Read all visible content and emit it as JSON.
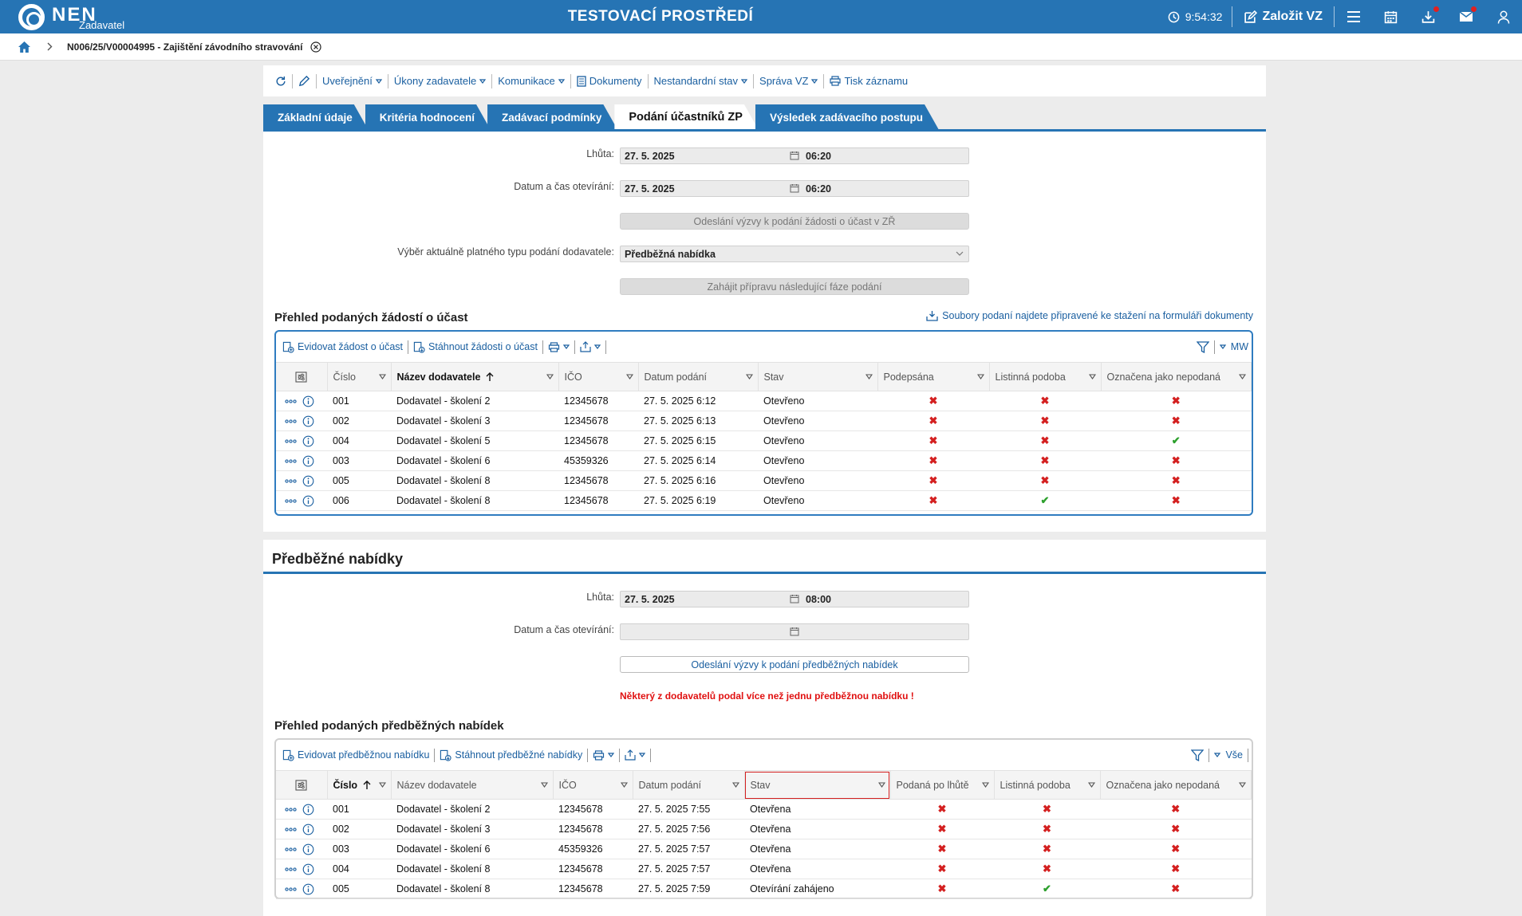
{
  "topbar": {
    "logo_text": "NEN",
    "logo_sub": "Zadavatel",
    "env_title": "TESTOVACÍ PROSTŘEDÍ",
    "time": "9:54:32",
    "create_label": "Založit VZ"
  },
  "breadcrumb": {
    "text": "N006/25/V00004995 - Zajištění závodního stravování"
  },
  "toolbar": {
    "items": [
      "Uveřejnění",
      "Úkony zadavatele",
      "Komunikace",
      "Dokumenty",
      "Nestandardní stav",
      "Správa VZ",
      "Tisk záznamu"
    ]
  },
  "tabs": [
    "Základní údaje",
    "Kritéria hodnocení",
    "Zadávací podmínky",
    "Podání účastníků ZP",
    "Výsledek zadávacího postupu"
  ],
  "section1": {
    "deadline_label": "Lhůta:",
    "deadline_date": "27. 5. 2025",
    "deadline_time": "06:20",
    "opening_label": "Datum a čas otevírání:",
    "opening_date": "27. 5. 2025",
    "opening_time": "06:20",
    "send_button": "Odeslání výzvy k podání žádosti o účast v ZŘ",
    "type_label": "Výběr aktuálně platného typu podání dodavatele:",
    "type_value": "Předběžná nabídka",
    "next_phase_button": "Zahájit přípravu následující fáze podání",
    "grid_title": "Přehled podaných žádostí o účast",
    "download_link": "Soubory podaní najdete připravené ke stažení na formuláři dokumenty",
    "grid_tools": [
      "Evidovat žádost o účast",
      "Stáhnout žádosti o účast"
    ],
    "grid_right": "MW",
    "columns": [
      "Číslo",
      "Název dodavatele",
      "IČO",
      "Datum podání",
      "Stav",
      "Podepsána",
      "Listinná podoba",
      "Označena jako nepodaná"
    ],
    "rows": [
      {
        "cislo": "001",
        "nazev": "Dodavatel - školení 2",
        "ico": "12345678",
        "datum": "27. 5. 2025 6:12",
        "stav": "Otevřeno",
        "p1": "x",
        "p2": "x",
        "p3": "x"
      },
      {
        "cislo": "002",
        "nazev": "Dodavatel - školení 3",
        "ico": "12345678",
        "datum": "27. 5. 2025 6:13",
        "stav": "Otevřeno",
        "p1": "x",
        "p2": "x",
        "p3": "x"
      },
      {
        "cislo": "004",
        "nazev": "Dodavatel - školení 5",
        "ico": "12345678",
        "datum": "27. 5. 2025 6:15",
        "stav": "Otevřeno",
        "p1": "x",
        "p2": "x",
        "p3": "ok"
      },
      {
        "cislo": "003",
        "nazev": "Dodavatel - školení 6",
        "ico": "45359326",
        "datum": "27. 5. 2025 6:14",
        "stav": "Otevřeno",
        "p1": "x",
        "p2": "x",
        "p3": "x"
      },
      {
        "cislo": "005",
        "nazev": "Dodavatel - školení 8",
        "ico": "12345678",
        "datum": "27. 5. 2025 6:16",
        "stav": "Otevřeno",
        "p1": "x",
        "p2": "x",
        "p3": "x"
      },
      {
        "cislo": "006",
        "nazev": "Dodavatel - školení 8",
        "ico": "12345678",
        "datum": "27. 5. 2025 6:19",
        "stav": "Otevřeno",
        "p1": "x",
        "p2": "ok",
        "p3": "x"
      }
    ]
  },
  "section2": {
    "title": "Předběžné nabídky",
    "deadline_label": "Lhůta:",
    "deadline_date": "27. 5. 2025",
    "deadline_time": "08:00",
    "opening_label": "Datum a čas otevírání:",
    "send_button": "Odeslání výzvy k podání předběžných nabídek",
    "warning": "Některý z dodavatelů podal více než jednu předběžnou nabídku !",
    "grid_title": "Přehled podaných předběžných nabídek",
    "grid_tools": [
      "Evidovat předběžnou nabídku",
      "Stáhnout předběžné nabídky"
    ],
    "grid_right": "Vše",
    "columns": [
      "Číslo",
      "Název dodavatele",
      "IČO",
      "Datum podání",
      "Stav",
      "Podaná po lhůtě",
      "Listinná podoba",
      "Označena jako nepodaná"
    ],
    "rows": [
      {
        "cislo": "001",
        "nazev": "Dodavatel - školení 2",
        "ico": "12345678",
        "datum": "27. 5. 2025 7:55",
        "stav": "Otevřena",
        "p1": "x",
        "p2": "x",
        "p3": "x"
      },
      {
        "cislo": "002",
        "nazev": "Dodavatel - školení 3",
        "ico": "12345678",
        "datum": "27. 5. 2025 7:56",
        "stav": "Otevřena",
        "p1": "x",
        "p2": "x",
        "p3": "x"
      },
      {
        "cislo": "003",
        "nazev": "Dodavatel - školení 6",
        "ico": "45359326",
        "datum": "27. 5. 2025 7:57",
        "stav": "Otevřena",
        "p1": "x",
        "p2": "x",
        "p3": "x"
      },
      {
        "cislo": "004",
        "nazev": "Dodavatel - školení 8",
        "ico": "12345678",
        "datum": "27. 5. 2025 7:57",
        "stav": "Otevřena",
        "p1": "x",
        "p2": "x",
        "p3": "x"
      },
      {
        "cislo": "005",
        "nazev": "Dodavatel - školení 8",
        "ico": "12345678",
        "datum": "27. 5. 2025 7:59",
        "stav": "Otevírání zahájeno",
        "p1": "x",
        "p2": "ok",
        "p3": "x"
      }
    ]
  },
  "colors": {
    "brand": "#2674b4",
    "error": "#d42020",
    "success": "#2da02d",
    "link": "#1a5fa0"
  }
}
